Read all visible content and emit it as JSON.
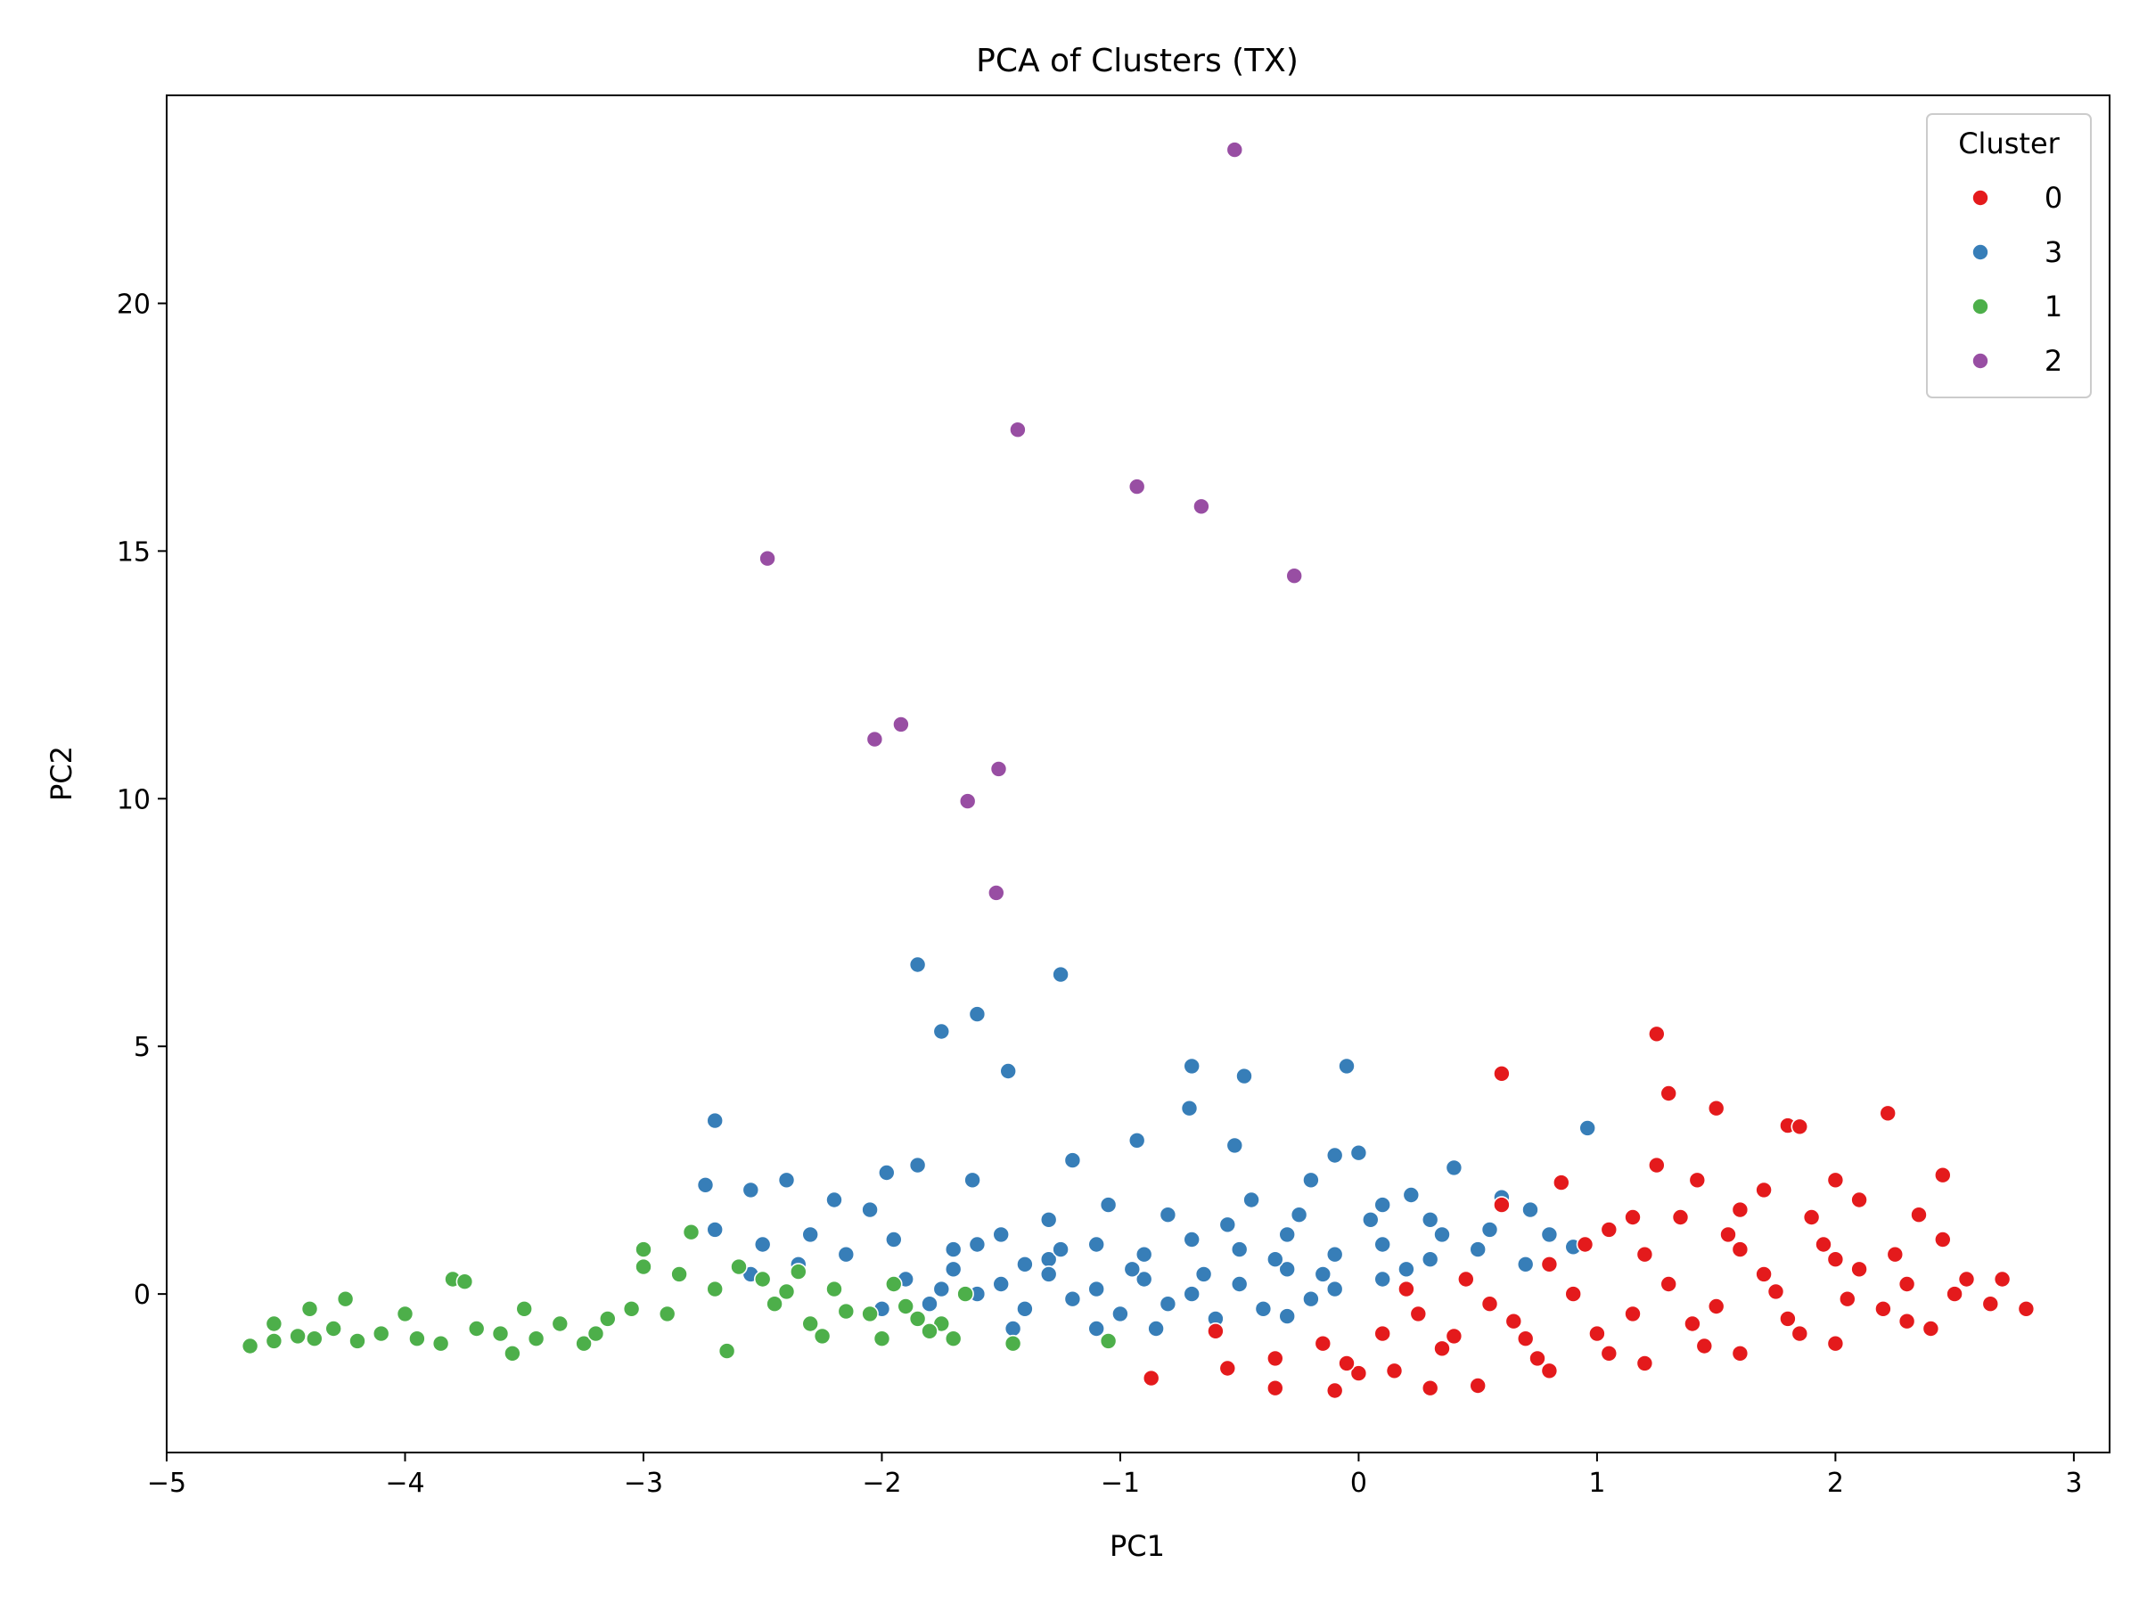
{
  "chart_data": {
    "type": "scatter",
    "title": "PCA of Clusters (TX)",
    "xlabel": "PC1",
    "ylabel": "PC2",
    "xlim": [
      -5.0,
      3.15
    ],
    "ylim": [
      -3.2,
      24.2
    ],
    "xticks": [
      -5,
      -4,
      -3,
      -2,
      -1,
      0,
      1,
      2,
      3
    ],
    "yticks": [
      0,
      5,
      10,
      15,
      20
    ],
    "grid": false,
    "legend": {
      "title": "Cluster",
      "placement": "top-right",
      "entries": [
        {
          "label": "0",
          "color": "#e41a1c"
        },
        {
          "label": "3",
          "color": "#377eb8"
        },
        {
          "label": "1",
          "color": "#4daf4a"
        },
        {
          "label": "2",
          "color": "#984ea3"
        }
      ]
    },
    "series": [
      {
        "name": "2",
        "color": "#984ea3",
        "points": [
          [
            -0.52,
            23.1
          ],
          [
            -1.43,
            17.45
          ],
          [
            -0.93,
            16.3
          ],
          [
            -0.66,
            15.9
          ],
          [
            -2.48,
            14.85
          ],
          [
            -0.27,
            14.5
          ],
          [
            -1.92,
            11.5
          ],
          [
            -2.03,
            11.2
          ],
          [
            -1.51,
            10.6
          ],
          [
            -1.64,
            9.95
          ],
          [
            -1.52,
            8.1
          ]
        ]
      },
      {
        "name": "3",
        "color": "#377eb8",
        "points": [
          [
            -1.85,
            6.65
          ],
          [
            -1.25,
            6.45
          ],
          [
            -1.6,
            5.65
          ],
          [
            -1.75,
            5.3
          ],
          [
            -0.7,
            4.6
          ],
          [
            -0.05,
            4.6
          ],
          [
            -1.47,
            4.5
          ],
          [
            -0.48,
            4.4
          ],
          [
            -2.7,
            3.5
          ],
          [
            0.96,
            3.35
          ],
          [
            -0.71,
            3.75
          ],
          [
            -0.93,
            3.1
          ],
          [
            -0.52,
            3.0
          ],
          [
            -2.4,
            2.3
          ],
          [
            -2.74,
            2.2
          ],
          [
            -2.55,
            2.1
          ],
          [
            -1.98,
            2.45
          ],
          [
            -1.85,
            2.6
          ],
          [
            -1.62,
            2.3
          ],
          [
            -1.2,
            2.7
          ],
          [
            -0.1,
            2.8
          ],
          [
            0.0,
            2.85
          ],
          [
            0.4,
            2.55
          ],
          [
            0.22,
            2.0
          ],
          [
            0.6,
            1.95
          ],
          [
            0.72,
            1.7
          ],
          [
            -2.2,
            1.9
          ],
          [
            -2.05,
            1.7
          ],
          [
            -1.3,
            1.5
          ],
          [
            -1.05,
            1.8
          ],
          [
            -0.8,
            1.6
          ],
          [
            -0.45,
            1.9
          ],
          [
            -0.2,
            2.3
          ],
          [
            0.1,
            1.8
          ],
          [
            0.3,
            1.5
          ],
          [
            -2.7,
            1.3
          ],
          [
            -2.5,
            1.0
          ],
          [
            -2.3,
            1.2
          ],
          [
            -2.15,
            0.8
          ],
          [
            -1.95,
            1.1
          ],
          [
            -1.7,
            0.9
          ],
          [
            -1.5,
            1.2
          ],
          [
            -1.3,
            0.7
          ],
          [
            -1.1,
            1.0
          ],
          [
            -0.9,
            0.8
          ],
          [
            -0.7,
            1.1
          ],
          [
            -0.5,
            0.9
          ],
          [
            -0.3,
            1.2
          ],
          [
            -0.1,
            0.8
          ],
          [
            0.1,
            1.0
          ],
          [
            0.3,
            0.7
          ],
          [
            0.5,
            0.9
          ],
          [
            0.7,
            0.6
          ],
          [
            -1.9,
            0.3
          ],
          [
            -1.7,
            0.5
          ],
          [
            -1.5,
            0.2
          ],
          [
            -1.3,
            0.4
          ],
          [
            -1.1,
            0.1
          ],
          [
            -0.9,
            0.3
          ],
          [
            -0.7,
            0.0
          ],
          [
            -0.5,
            0.2
          ],
          [
            -0.3,
            0.5
          ],
          [
            -0.1,
            0.1
          ],
          [
            0.1,
            0.3
          ],
          [
            -1.8,
            -0.2
          ],
          [
            -1.6,
            0.0
          ],
          [
            -1.4,
            -0.3
          ],
          [
            -1.2,
            -0.1
          ],
          [
            -1.0,
            -0.4
          ],
          [
            -0.8,
            -0.2
          ],
          [
            -0.6,
            -0.5
          ],
          [
            -0.4,
            -0.3
          ],
          [
            -0.2,
            -0.1
          ],
          [
            -2.0,
            -0.3
          ],
          [
            -2.2,
            0.1
          ],
          [
            -1.45,
            -0.7
          ],
          [
            -1.1,
            -0.7
          ],
          [
            -0.85,
            -0.7
          ],
          [
            -0.3,
            -0.45
          ],
          [
            -1.25,
            0.9
          ],
          [
            -0.95,
            0.5
          ],
          [
            -0.65,
            0.4
          ],
          [
            -0.35,
            0.7
          ],
          [
            -0.15,
            0.4
          ],
          [
            0.2,
            0.5
          ],
          [
            0.45,
            0.3
          ],
          [
            -1.6,
            1.0
          ],
          [
            -1.4,
            0.6
          ],
          [
            -1.75,
            0.1
          ],
          [
            -2.35,
            0.6
          ],
          [
            -2.55,
            0.4
          ],
          [
            -0.55,
            1.4
          ],
          [
            -0.25,
            1.6
          ],
          [
            0.05,
            1.5
          ],
          [
            0.35,
            1.2
          ],
          [
            0.55,
            1.3
          ],
          [
            0.8,
            1.2
          ],
          [
            0.9,
            0.95
          ]
        ]
      },
      {
        "name": "1",
        "color": "#4daf4a",
        "points": [
          [
            -4.65,
            -1.05
          ],
          [
            -4.55,
            -0.95
          ],
          [
            -4.45,
            -0.85
          ],
          [
            -4.38,
            -0.9
          ],
          [
            -4.3,
            -0.7
          ],
          [
            -4.25,
            -0.1
          ],
          [
            -4.2,
            -0.95
          ],
          [
            -4.1,
            -0.8
          ],
          [
            -4.0,
            -0.4
          ],
          [
            -3.95,
            -0.9
          ],
          [
            -3.85,
            -1.0
          ],
          [
            -3.8,
            0.3
          ],
          [
            -3.75,
            0.25
          ],
          [
            -3.7,
            -0.7
          ],
          [
            -3.6,
            -0.8
          ],
          [
            -3.5,
            -0.3
          ],
          [
            -3.45,
            -0.9
          ],
          [
            -3.35,
            -0.6
          ],
          [
            -3.25,
            -1.0
          ],
          [
            -3.15,
            -0.5
          ],
          [
            -3.05,
            -0.3
          ],
          [
            -3.0,
            0.9
          ],
          [
            -3.0,
            0.55
          ],
          [
            -2.9,
            -0.4
          ],
          [
            -2.85,
            0.4
          ],
          [
            -2.8,
            1.25
          ],
          [
            -2.7,
            0.1
          ],
          [
            -2.6,
            0.55
          ],
          [
            -2.5,
            0.3
          ],
          [
            -2.45,
            -0.2
          ],
          [
            -2.4,
            0.05
          ],
          [
            -2.35,
            0.45
          ],
          [
            -2.3,
            -0.6
          ],
          [
            -2.2,
            0.1
          ],
          [
            -2.15,
            -0.35
          ],
          [
            -2.05,
            -0.4
          ],
          [
            -2.0,
            -0.9
          ],
          [
            -1.95,
            0.2
          ],
          [
            -1.85,
            -0.5
          ],
          [
            -1.75,
            -0.6
          ],
          [
            -1.7,
            -0.9
          ],
          [
            -1.65,
            0.0
          ],
          [
            -1.45,
            -1.0
          ],
          [
            -1.05,
            -0.95
          ],
          [
            -4.55,
            -0.6
          ],
          [
            -4.4,
            -0.3
          ],
          [
            -3.55,
            -1.2
          ],
          [
            -3.2,
            -0.8
          ],
          [
            -2.65,
            -1.15
          ],
          [
            -2.25,
            -0.85
          ],
          [
            -1.9,
            -0.25
          ],
          [
            -1.8,
            -0.75
          ]
        ]
      },
      {
        "name": "0",
        "color": "#e41a1c",
        "points": [
          [
            1.25,
            5.25
          ],
          [
            0.6,
            4.45
          ],
          [
            1.3,
            4.05
          ],
          [
            1.5,
            3.75
          ],
          [
            2.22,
            3.65
          ],
          [
            1.8,
            3.4
          ],
          [
            1.85,
            3.38
          ],
          [
            2.45,
            2.4
          ],
          [
            1.25,
            2.6
          ],
          [
            0.85,
            2.25
          ],
          [
            1.42,
            2.3
          ],
          [
            1.7,
            2.1
          ],
          [
            2.0,
            2.3
          ],
          [
            2.35,
            1.6
          ],
          [
            1.15,
            1.55
          ],
          [
            1.55,
            1.2
          ],
          [
            1.95,
            1.0
          ],
          [
            2.25,
            0.8
          ],
          [
            2.55,
            0.3
          ],
          [
            2.8,
            -0.3
          ],
          [
            2.7,
            0.3
          ],
          [
            0.15,
            -1.55
          ],
          [
            0.3,
            -1.9
          ],
          [
            0.5,
            -1.85
          ],
          [
            0.8,
            -1.55
          ],
          [
            1.2,
            -1.4
          ],
          [
            1.6,
            -1.2
          ],
          [
            2.0,
            -1.0
          ],
          [
            2.4,
            -0.7
          ],
          [
            -0.1,
            -1.95
          ],
          [
            -0.35,
            -1.9
          ],
          [
            -0.55,
            -1.5
          ],
          [
            -0.87,
            -1.7
          ],
          [
            0.0,
            -1.6
          ],
          [
            0.35,
            -1.1
          ],
          [
            0.7,
            -0.9
          ],
          [
            1.0,
            -0.8
          ],
          [
            1.4,
            -0.6
          ],
          [
            1.8,
            -0.5
          ],
          [
            2.2,
            -0.3
          ],
          [
            0.25,
            -0.4
          ],
          [
            0.55,
            -0.2
          ],
          [
            0.9,
            0.0
          ],
          [
            1.3,
            0.2
          ],
          [
            1.7,
            0.4
          ],
          [
            2.1,
            0.5
          ],
          [
            0.45,
            0.3
          ],
          [
            0.8,
            0.6
          ],
          [
            1.2,
            0.8
          ],
          [
            1.6,
            0.9
          ],
          [
            2.0,
            0.7
          ],
          [
            2.45,
            1.1
          ],
          [
            -0.6,
            -0.75
          ],
          [
            -0.35,
            -1.3
          ],
          [
            -0.15,
            -1.0
          ],
          [
            0.1,
            -0.8
          ],
          [
            1.05,
            -1.2
          ],
          [
            1.45,
            -1.05
          ],
          [
            1.85,
            -0.8
          ],
          [
            2.3,
            -0.55
          ],
          [
            2.65,
            -0.2
          ],
          [
            2.5,
            0.0
          ],
          [
            2.3,
            0.2
          ],
          [
            2.05,
            -0.1
          ],
          [
            1.75,
            0.05
          ],
          [
            1.5,
            -0.25
          ],
          [
            1.15,
            -0.4
          ],
          [
            0.65,
            -0.55
          ],
          [
            0.4,
            -0.85
          ],
          [
            0.2,
            0.1
          ],
          [
            0.6,
            1.8
          ],
          [
            1.05,
            1.3
          ],
          [
            1.35,
            1.55
          ],
          [
            1.9,
            1.55
          ],
          [
            2.1,
            1.9
          ],
          [
            1.6,
            1.7
          ],
          [
            0.95,
            1.0
          ],
          [
            0.75,
            -1.3
          ],
          [
            -0.05,
            -1.4
          ]
        ]
      }
    ]
  }
}
